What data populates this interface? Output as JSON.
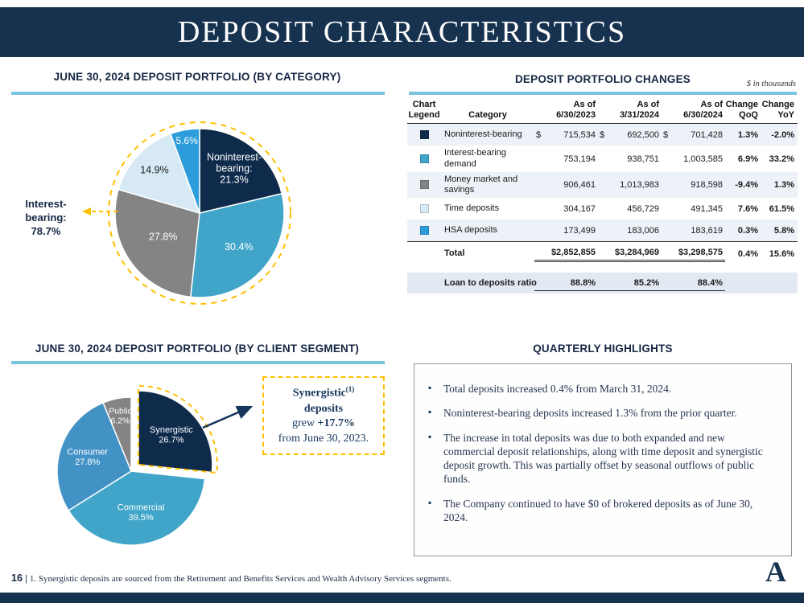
{
  "title": "DEPOSIT CHARACTERISTICS",
  "colors": {
    "navy": "#0F2B4C",
    "teal": "#41A5C9",
    "consumer_blue": "#4392C6",
    "bright_blue": "#2D9CDB",
    "pale_blue": "#D6E9F4",
    "gray": "#848484",
    "gold": "#FFC000",
    "rule": "#7AC3DC"
  },
  "chart_data": [
    {
      "type": "pie",
      "title": "JUNE 30, 2024 DEPOSIT PORTFOLIO (BY CATEGORY)",
      "dashed_ring": true,
      "annotation": {
        "lines": [
          "Interest-",
          "bearing:",
          "78.7%"
        ]
      },
      "slices": [
        {
          "name": "noninterest-bearing",
          "label": "Noninterest-bearing",
          "value": 21.3,
          "color": "#0F2B4C",
          "label_lines": [
            "Noninterest-",
            "bearing:",
            "21.3%"
          ],
          "label_r": 0.66,
          "label_color": "#FFFFFF",
          "label_size": 12.5
        },
        {
          "name": "interest-bearing-demand",
          "label": "Interest-bearing demand",
          "value": 30.4,
          "color": "#41A5C9",
          "label_lines": [
            "30.4%"
          ],
          "label_r": 0.62,
          "label_color": "#FFFFFF",
          "label_size": 12.5
        },
        {
          "name": "money-market-and-savings",
          "label": "Money market and savings",
          "value": 27.8,
          "color": "#848484",
          "label_lines": [
            "27.8%"
          ],
          "label_r": 0.52,
          "label_color": "#FFFFFF",
          "label_size": 12.5
        },
        {
          "name": "time-deposits",
          "label": "Time deposits",
          "value": 14.9,
          "color": "#D6E9F4",
          "label_lines": [
            "14.9%"
          ],
          "label_r": 0.73,
          "label_color": "#1A1A1A",
          "label_size": 12.5
        },
        {
          "name": "hsa-deposits",
          "label": "HSA deposits",
          "value": 5.6,
          "color": "#2D9CDB",
          "label_lines": [
            "5.6%"
          ],
          "label_r": 0.86,
          "label_color": "#FFFFFF",
          "label_size": 12
        }
      ]
    },
    {
      "type": "pie",
      "title": "JUNE 30, 2024 DEPOSIT PORTFOLIO (BY CLIENT SEGMENT)",
      "dashed_ring": false,
      "slices": [
        {
          "name": "synergistic",
          "label": "Synergistic",
          "value": 26.7,
          "color": "#0F2B4C",
          "explode": 12,
          "outline": true,
          "label_lines": [
            "Synergistic",
            "26.7%"
          ],
          "label_r": 0.6,
          "label_color": "#FFFFFF",
          "label_size": 11
        },
        {
          "name": "commercial",
          "label": "Commercial",
          "value": 39.5,
          "color": "#41A5C9",
          "label_lines": [
            "Commercial",
            "39.5%"
          ],
          "label_r": 0.58,
          "label_color": "#FFFFFF",
          "label_size": 11
        },
        {
          "name": "consumer",
          "label": "Consumer",
          "value": 27.8,
          "color": "#4392C6",
          "label_lines": [
            "Consumer",
            "27.8%"
          ],
          "label_r": 0.62,
          "label_color": "#FFFFFF",
          "label_size": 11
        },
        {
          "name": "public",
          "label": "Public",
          "value": 6.2,
          "color": "#848484",
          "label_lines": [
            "Public",
            "6.2%"
          ],
          "label_r": 0.76,
          "label_color": "#FFFFFF",
          "label_size": 10.5
        }
      ]
    }
  ],
  "table": {
    "title": "DEPOSIT PORTFOLIO CHANGES",
    "units": "$ in thousands",
    "headers": {
      "legend": [
        "Chart",
        "Legend"
      ],
      "category": [
        "Category"
      ],
      "col1": [
        "As of",
        "6/30/2023"
      ],
      "col2": [
        "As of",
        "3/31/2024"
      ],
      "col3": [
        "As of",
        "6/30/2024"
      ],
      "qoq": [
        "Change",
        "QoQ"
      ],
      "yoy": [
        "Change",
        "YoY"
      ]
    },
    "rows": [
      {
        "color": "#0F2B4C",
        "category": "Noninterest-bearing",
        "cur": "$",
        "v1": "715,534",
        "v2": "692,500",
        "v3": "701,428",
        "qoq": "1.3%",
        "yoy": "-2.0%",
        "shaded": true
      },
      {
        "color": "#41A5C9",
        "category": "Interest-bearing demand",
        "cur": "",
        "v1": "753,194",
        "v2": "938,751",
        "v3": "1,003,585",
        "qoq": "6.9%",
        "yoy": "33.2%",
        "shaded": false
      },
      {
        "color": "#848484",
        "category": "Money market and savings",
        "cur": "",
        "v1": "906,461",
        "v2": "1,013,983",
        "v3": "918,598",
        "qoq": "-9.4%",
        "yoy": "1.3%",
        "shaded": true
      },
      {
        "color": "#D6E9F4",
        "category": "Time deposits",
        "cur": "",
        "v1": "304,167",
        "v2": "456,729",
        "v3": "491,345",
        "qoq": "7.6%",
        "yoy": "61.5%",
        "shaded": false
      },
      {
        "color": "#2D9CDB",
        "category": "HSA deposits",
        "cur": "",
        "v1": "173,499",
        "v2": "183,006",
        "v3": "183,619",
        "qoq": "0.3%",
        "yoy": "5.8%",
        "shaded": true
      }
    ],
    "total": {
      "label": "Total",
      "v1": "$2,852,855",
      "v2": "$3,284,969",
      "v3": "$3,298,575",
      "qoq": "0.4%",
      "yoy": "15.6%"
    },
    "loan": {
      "label": "Loan to deposits ratio",
      "v1": "88.8%",
      "v2": "85.2%",
      "v3": "88.4%"
    }
  },
  "synergistic_note": {
    "title": "Synergistic",
    "sup": "(1)",
    "title2": "deposits",
    "grew": "grew",
    "pct": "+17.7%",
    "from": "from June 30, 2023."
  },
  "highlights": {
    "title": "QUARTERLY HIGHLIGHTS",
    "items": [
      "Total deposits increased 0.4% from March 31, 2024.",
      "Noninterest-bearing deposits increased 1.3% from the prior quarter.",
      "The increase in total deposits was due to both expanded and new commercial deposit relationships, along with time deposit and synergistic deposit growth. This was partially offset by seasonal outflows of public funds.",
      "The Company continued to have $0 of brokered deposits as of June 30, 2024."
    ]
  },
  "footer": {
    "page": "16",
    "separator": "|",
    "footnote": "1. Synergistic deposits are sourced from the Retirement and Benefits Services and Wealth Advisory Services segments.",
    "logo_letter": "A"
  }
}
